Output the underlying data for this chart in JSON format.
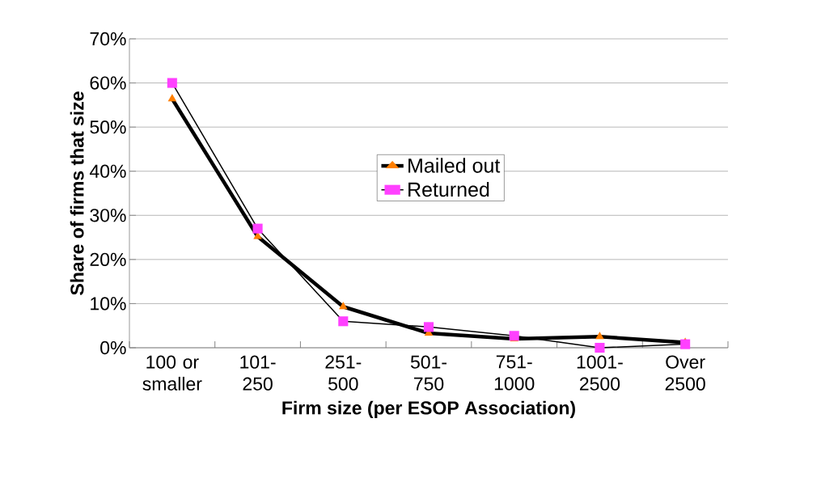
{
  "chart_data": {
    "type": "line",
    "xlabel": "Firm size (per ESOP Association)",
    "ylabel": "Share of firms that size",
    "categories": [
      "100 or smaller",
      "101-250",
      "251-500",
      "501-750",
      "751-1000",
      "1001-2500",
      "Over 2500"
    ],
    "series": [
      {
        "name": "Mailed out",
        "color": "#ff7f00",
        "marker": "triangle",
        "values": [
          0.564,
          0.252,
          0.093,
          0.033,
          0.02,
          0.025,
          0.012
        ]
      },
      {
        "name": "Returned",
        "color": "#ff40ff",
        "marker": "square",
        "values": [
          0.6,
          0.27,
          0.06,
          0.047,
          0.027,
          0.0,
          0.008
        ]
      }
    ],
    "ylim": [
      0,
      0.7
    ],
    "yticks": [
      {
        "value": 0,
        "label": "0%"
      },
      {
        "value": 0.1,
        "label": "10%"
      },
      {
        "value": 0.2,
        "label": "20%"
      },
      {
        "value": 0.3,
        "label": "30%"
      },
      {
        "value": 0.4,
        "label": "40%"
      },
      {
        "value": 0.5,
        "label": "50%"
      },
      {
        "value": 0.6,
        "label": "60%"
      },
      {
        "value": 0.7,
        "label": "70%"
      }
    ],
    "grid": "y",
    "legend": "center",
    "line_style": "solid"
  }
}
